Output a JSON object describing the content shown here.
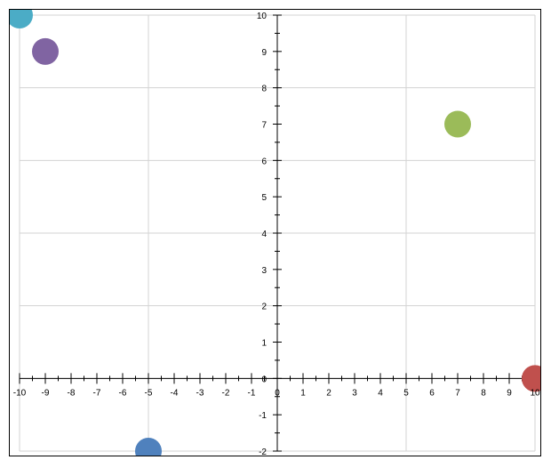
{
  "chart_data": {
    "type": "scatter",
    "title": "",
    "xlabel": "",
    "ylabel": "",
    "xlim": [
      -10,
      10
    ],
    "ylim": [
      -2,
      10
    ],
    "grid": true,
    "x_major_ticks": [
      -10,
      -9,
      -8,
      -7,
      -6,
      -5,
      -4,
      -3,
      -2,
      -1,
      0,
      1,
      2,
      3,
      4,
      5,
      6,
      7,
      8,
      9,
      10
    ],
    "y_major_ticks": [
      -2,
      -1,
      0,
      1,
      2,
      3,
      4,
      5,
      6,
      7,
      8,
      9,
      10
    ],
    "x_gridlines": [
      -10,
      -5,
      0,
      5,
      10
    ],
    "y_gridlines": [
      -2,
      0,
      2,
      4,
      6,
      8,
      10
    ],
    "points": [
      {
        "x": -10,
        "y": 10,
        "color": "#4bacc6"
      },
      {
        "x": -9,
        "y": 9,
        "color": "#8064a2"
      },
      {
        "x": 7,
        "y": 7,
        "color": "#9bbb59"
      },
      {
        "x": 10,
        "y": 0,
        "color": "#c0504d"
      },
      {
        "x": -5,
        "y": -2,
        "color": "#4f81bd"
      }
    ]
  }
}
